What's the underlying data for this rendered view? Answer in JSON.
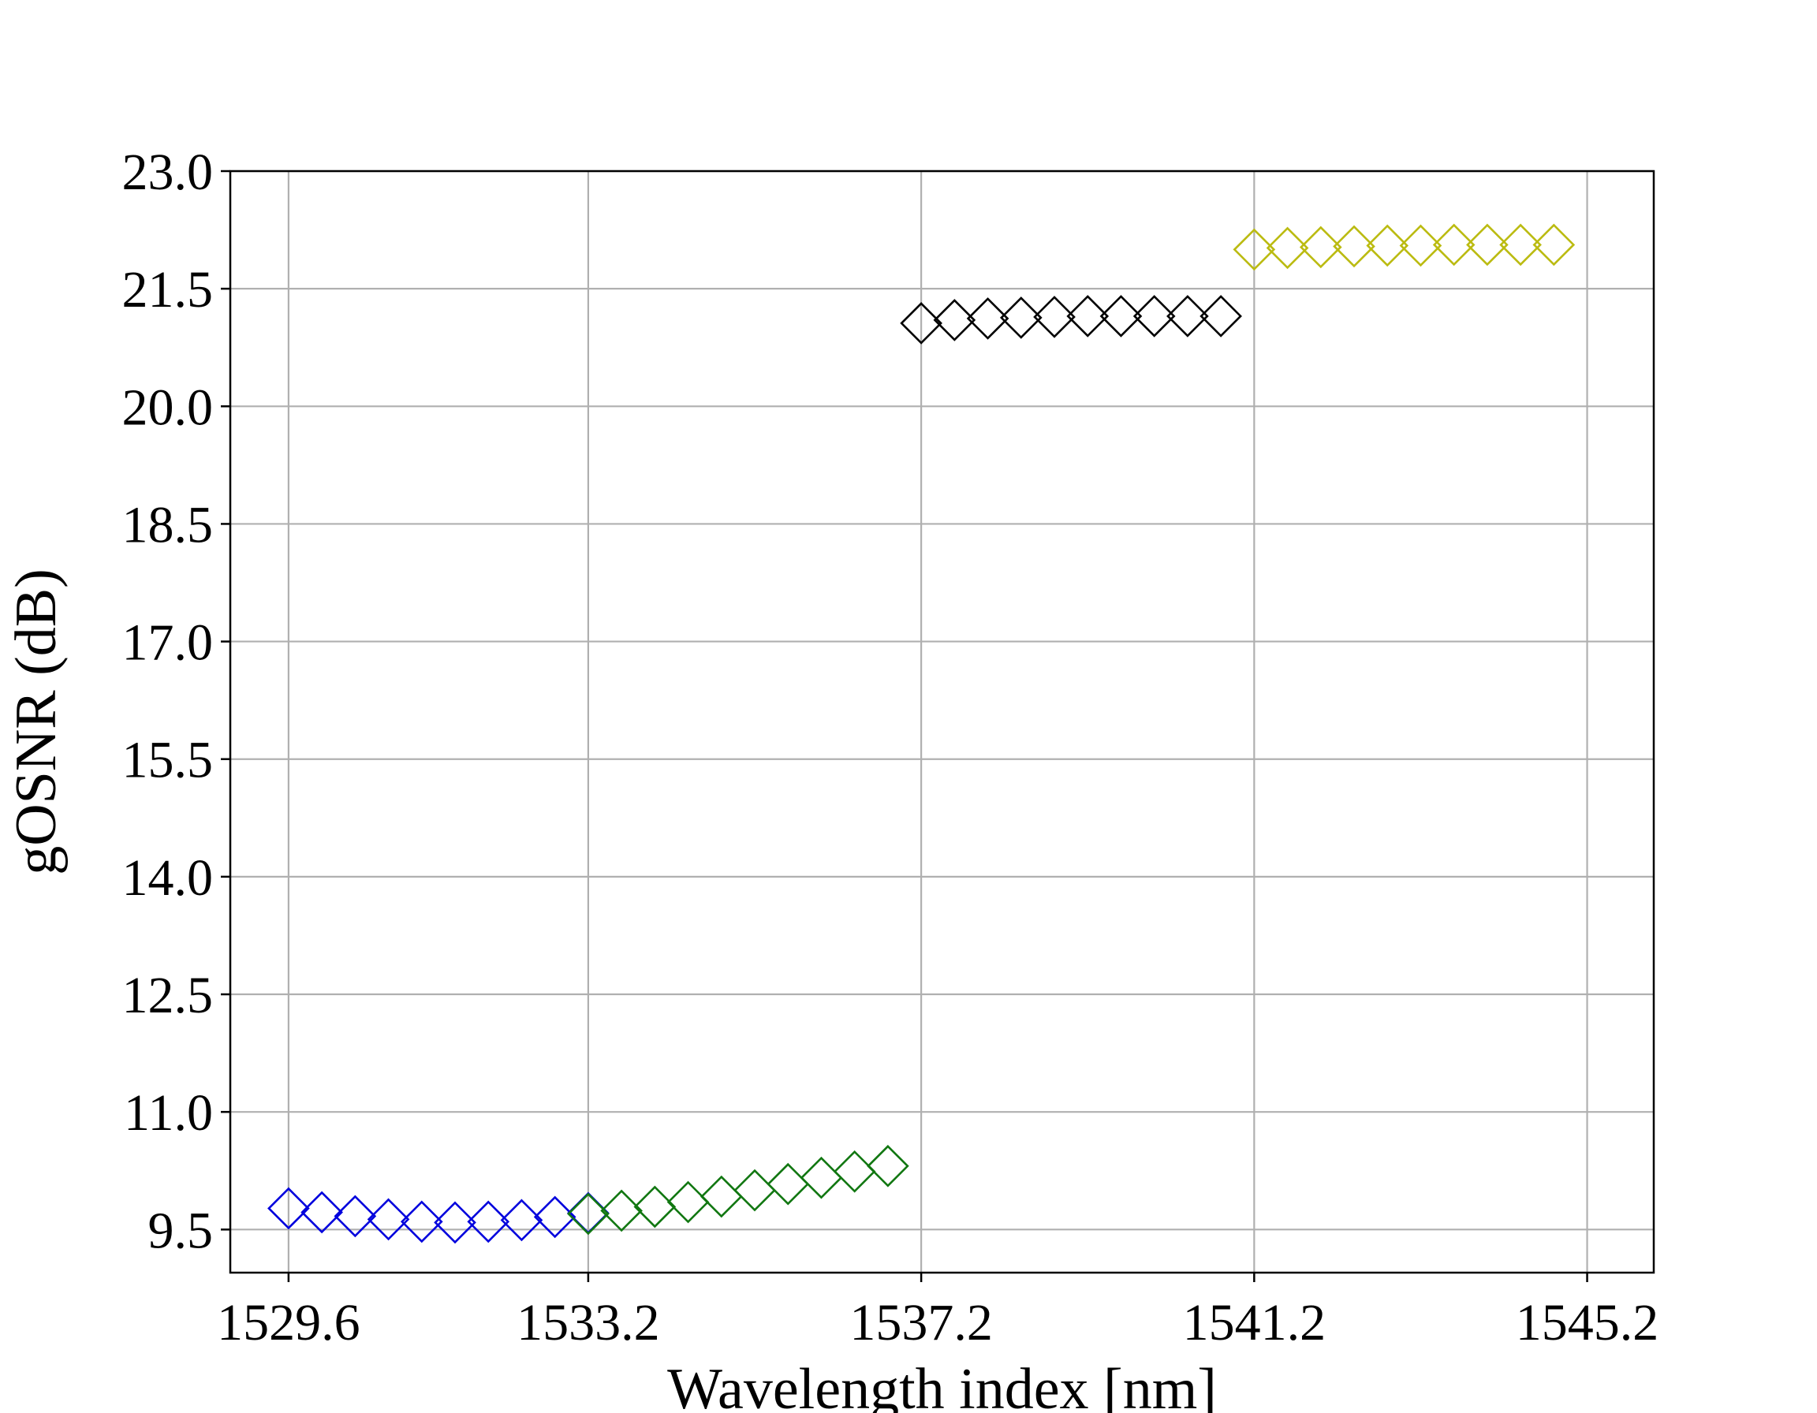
{
  "chart_data": {
    "type": "scatter",
    "title": "",
    "xlabel": "Wavelength index [nm]",
    "ylabel": "gOSNR (dB)",
    "xlim": [
      1528.9,
      1546.0
    ],
    "ylim": [
      8.95,
      23.0
    ],
    "xticks": [
      "1529.6",
      "1533.2",
      "1537.2",
      "1541.2",
      "1545.2"
    ],
    "xtick_values": [
      1529.6,
      1533.2,
      1537.2,
      1541.2,
      1545.2
    ],
    "yticks": [
      "9.5",
      "11.0",
      "12.5",
      "14.0",
      "15.5",
      "17.0",
      "18.5",
      "20.0",
      "21.5",
      "23.0"
    ],
    "ytick_values": [
      9.5,
      11.0,
      12.5,
      14.0,
      15.5,
      17.0,
      18.5,
      20.0,
      21.5,
      23.0
    ],
    "grid": true,
    "marker": "diamond-open",
    "series": [
      {
        "color": "#0000dd",
        "x": [
          1529.6,
          1530.0,
          1530.4,
          1530.8,
          1531.2,
          1531.6,
          1532.0,
          1532.4,
          1532.8,
          1533.2
        ],
        "y": [
          9.77,
          9.72,
          9.67,
          9.63,
          9.6,
          9.59,
          9.6,
          9.62,
          9.66,
          9.71
        ]
      },
      {
        "color": "#117711",
        "x": [
          1533.2,
          1533.6,
          1534.0,
          1534.4,
          1534.8,
          1535.2,
          1535.6,
          1536.0,
          1536.4,
          1536.8
        ],
        "y": [
          9.7,
          9.74,
          9.79,
          9.85,
          9.92,
          10.0,
          10.08,
          10.16,
          10.24,
          10.31
        ]
      },
      {
        "color": "#000000",
        "x": [
          1537.2,
          1537.6,
          1538.0,
          1538.4,
          1538.8,
          1539.2,
          1539.6,
          1540.0,
          1540.4,
          1540.8
        ],
        "y": [
          21.06,
          21.1,
          21.12,
          21.13,
          21.14,
          21.15,
          21.15,
          21.15,
          21.15,
          21.15
        ]
      },
      {
        "color": "#bbbb11",
        "x": [
          1541.2,
          1541.6,
          1542.0,
          1542.4,
          1542.8,
          1543.2,
          1543.6,
          1544.0,
          1544.4,
          1544.8
        ],
        "y": [
          22.0,
          22.02,
          22.03,
          22.04,
          22.05,
          22.05,
          22.06,
          22.06,
          22.06,
          22.06
        ]
      }
    ]
  }
}
